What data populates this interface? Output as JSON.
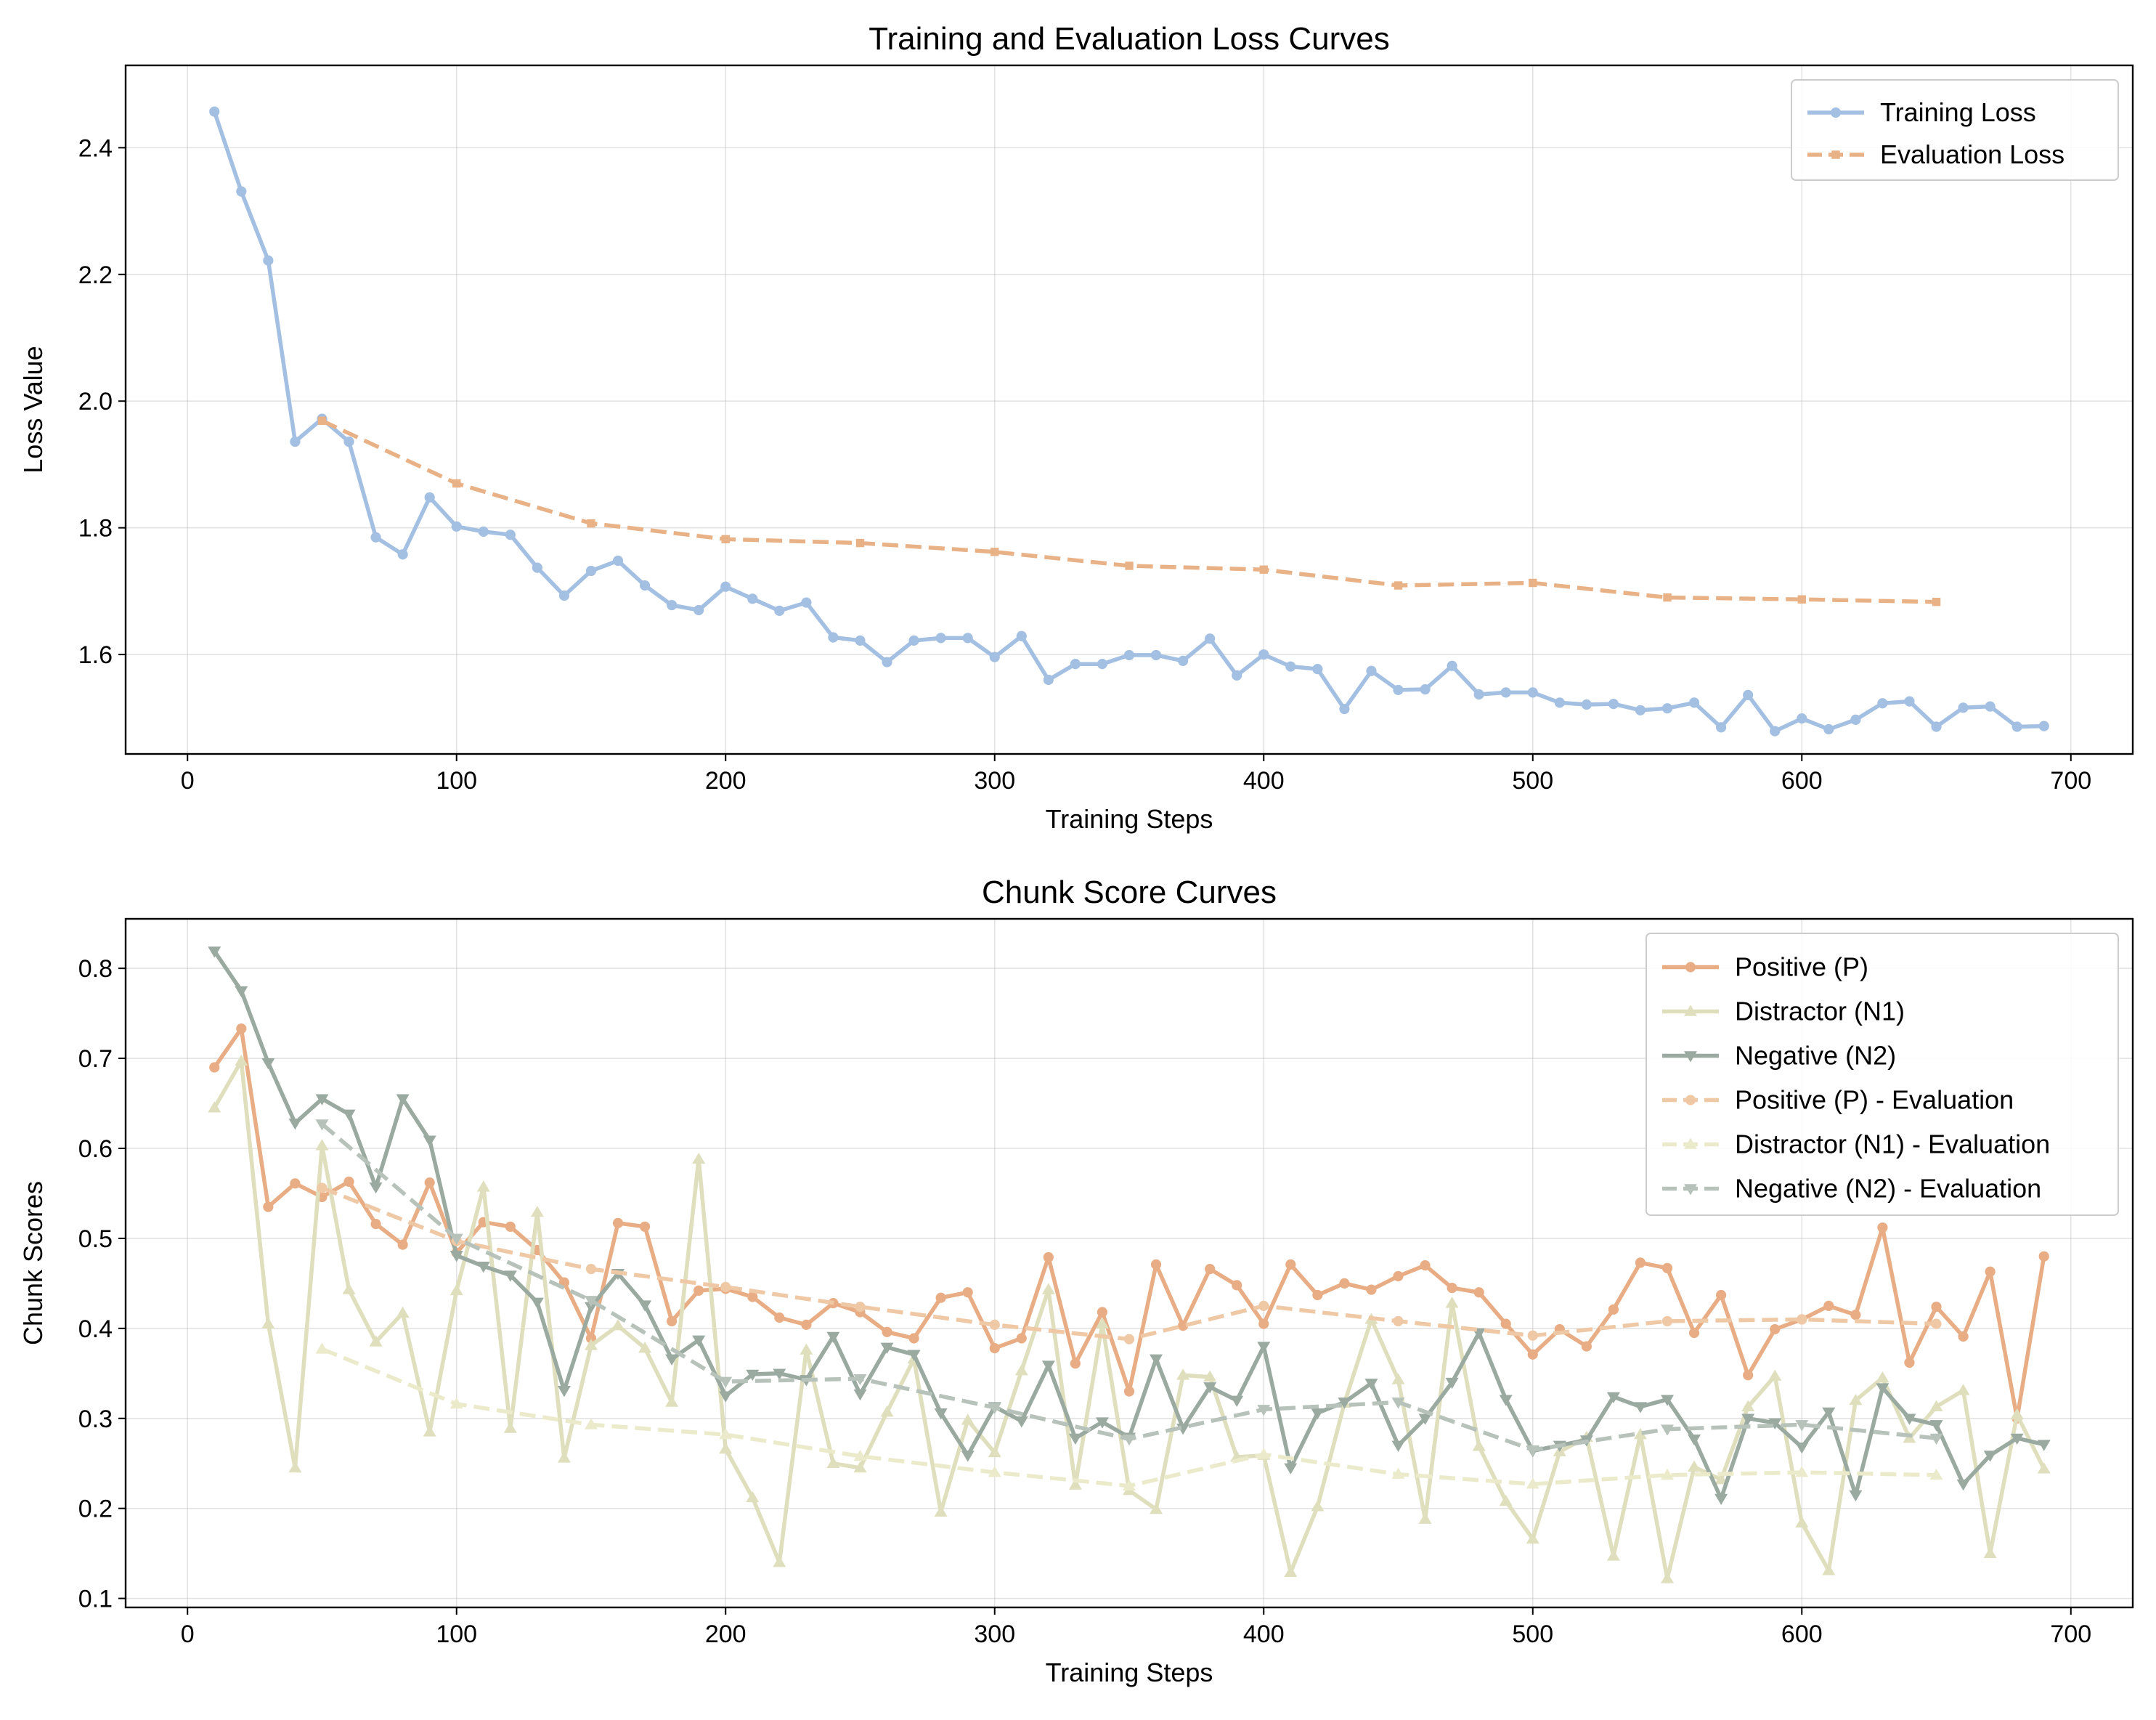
{
  "chart_data": [
    {
      "type": "line",
      "title": "Training and Evaluation Loss Curves",
      "xlabel": "Training Steps",
      "ylabel": "Loss Value",
      "xlim": [
        -23,
        723
      ],
      "ylim": [
        1.443,
        2.53
      ],
      "xticks": [
        0,
        100,
        200,
        300,
        400,
        500,
        600,
        700
      ],
      "yticks": [
        1.6,
        1.8,
        2.0,
        2.2,
        2.4
      ],
      "ytick_labels": [
        "1.6",
        "1.8",
        "2.0",
        "2.2",
        "2.4"
      ],
      "grid": true,
      "legend_position": "top-right",
      "series": [
        {
          "name": "Training Loss",
          "color": "#a3bfe2",
          "style": "solid",
          "marker": "circle",
          "x": [
            10,
            20,
            30,
            40,
            50,
            60,
            70,
            80,
            90,
            100,
            110,
            120,
            130,
            140,
            150,
            160,
            170,
            180,
            190,
            200,
            210,
            220,
            230,
            240,
            250,
            260,
            270,
            280,
            290,
            300,
            310,
            320,
            330,
            340,
            350,
            360,
            370,
            380,
            390,
            400,
            410,
            420,
            430,
            440,
            450,
            460,
            470,
            480,
            490,
            500,
            510,
            520,
            530,
            540,
            550,
            560,
            570,
            580,
            590,
            600,
            610,
            620,
            630,
            640,
            650,
            660,
            670,
            680,
            690
          ],
          "values": [
            2.457,
            2.331,
            2.222,
            1.936,
            1.972,
            1.936,
            1.785,
            1.758,
            1.848,
            1.802,
            1.794,
            1.789,
            1.737,
            1.693,
            1.732,
            1.748,
            1.709,
            1.678,
            1.67,
            1.707,
            1.688,
            1.669,
            1.682,
            1.627,
            1.622,
            1.588,
            1.622,
            1.626,
            1.626,
            1.596,
            1.629,
            1.56,
            1.585,
            1.585,
            1.599,
            1.599,
            1.59,
            1.625,
            1.567,
            1.6,
            1.581,
            1.577,
            1.514,
            1.574,
            1.544,
            1.545,
            1.582,
            1.537,
            1.54,
            1.54,
            1.524,
            1.521,
            1.522,
            1.512,
            1.515,
            1.524,
            1.485,
            1.536,
            1.479,
            1.499,
            1.482,
            1.497,
            1.523,
            1.526,
            1.486,
            1.516,
            1.518,
            1.486,
            1.487
          ]
        },
        {
          "name": "Evaluation Loss",
          "color": "#e8b186",
          "style": "dashed",
          "marker": "square",
          "x": [
            50,
            100,
            150,
            200,
            250,
            300,
            350,
            400,
            450,
            500,
            550,
            600,
            650
          ],
          "values": [
            1.969,
            1.87,
            1.807,
            1.782,
            1.776,
            1.762,
            1.74,
            1.734,
            1.709,
            1.713,
            1.69,
            1.687,
            1.683
          ]
        }
      ]
    },
    {
      "type": "line",
      "title": "Chunk Score Curves",
      "xlabel": "Training Steps",
      "ylabel": "Chunk Scores",
      "xlim": [
        -23,
        723
      ],
      "ylim": [
        0.09,
        0.855
      ],
      "xticks": [
        0,
        100,
        200,
        300,
        400,
        500,
        600,
        700
      ],
      "yticks": [
        0.1,
        0.2,
        0.3,
        0.4,
        0.5,
        0.6,
        0.7,
        0.8
      ],
      "ytick_labels": [
        "0.1",
        "0.2",
        "0.3",
        "0.4",
        "0.5",
        "0.6",
        "0.7",
        "0.8"
      ],
      "grid": true,
      "legend_position": "top-right",
      "series": [
        {
          "name": "Positive (P)",
          "color": "#e8ad84",
          "style": "solid",
          "marker": "circle",
          "x": [
            10,
            20,
            30,
            40,
            50,
            60,
            70,
            80,
            90,
            100,
            110,
            120,
            130,
            140,
            150,
            160,
            170,
            180,
            190,
            200,
            210,
            220,
            230,
            240,
            250,
            260,
            270,
            280,
            290,
            300,
            310,
            320,
            330,
            340,
            350,
            360,
            370,
            380,
            390,
            400,
            410,
            420,
            430,
            440,
            450,
            460,
            470,
            480,
            490,
            500,
            510,
            520,
            530,
            540,
            550,
            560,
            570,
            580,
            590,
            600,
            610,
            620,
            630,
            640,
            650,
            660,
            670,
            680,
            690
          ],
          "values": [
            0.69,
            0.733,
            0.535,
            0.561,
            0.546,
            0.563,
            0.516,
            0.493,
            0.562,
            0.484,
            0.518,
            0.513,
            0.487,
            0.451,
            0.389,
            0.517,
            0.513,
            0.408,
            0.442,
            0.444,
            0.435,
            0.412,
            0.404,
            0.428,
            0.418,
            0.396,
            0.389,
            0.434,
            0.44,
            0.378,
            0.389,
            0.479,
            0.361,
            0.418,
            0.33,
            0.471,
            0.403,
            0.466,
            0.448,
            0.405,
            0.471,
            0.437,
            0.45,
            0.443,
            0.458,
            0.47,
            0.445,
            0.44,
            0.405,
            0.371,
            0.399,
            0.38,
            0.421,
            0.473,
            0.467,
            0.395,
            0.437,
            0.348,
            0.399,
            0.41,
            0.425,
            0.415,
            0.512,
            0.362,
            0.424,
            0.391,
            0.463,
            0.3,
            0.48
          ]
        },
        {
          "name": "Distractor (N1)",
          "color": "#dfdfbd",
          "style": "solid",
          "marker": "triangle-up",
          "x": [
            10,
            20,
            30,
            40,
            50,
            60,
            70,
            80,
            90,
            100,
            110,
            120,
            130,
            140,
            150,
            160,
            170,
            180,
            190,
            200,
            210,
            220,
            230,
            240,
            250,
            260,
            270,
            280,
            290,
            300,
            310,
            320,
            330,
            340,
            350,
            360,
            370,
            380,
            390,
            400,
            410,
            420,
            430,
            440,
            450,
            460,
            470,
            480,
            490,
            500,
            510,
            520,
            530,
            540,
            550,
            560,
            570,
            580,
            590,
            600,
            610,
            620,
            630,
            640,
            650,
            660,
            670,
            680,
            690
          ],
          "values": [
            0.645,
            0.697,
            0.405,
            0.245,
            0.603,
            0.443,
            0.385,
            0.417,
            0.285,
            0.442,
            0.557,
            0.289,
            0.529,
            0.256,
            0.381,
            0.403,
            0.378,
            0.318,
            0.588,
            0.266,
            0.212,
            0.14,
            0.376,
            0.25,
            0.245,
            0.307,
            0.366,
            0.196,
            0.298,
            0.262,
            0.353,
            0.443,
            0.226,
            0.405,
            0.22,
            0.199,
            0.348,
            0.346,
            0.257,
            0.259,
            0.129,
            0.202,
            0.317,
            0.41,
            0.343,
            0.188,
            0.428,
            0.269,
            0.208,
            0.166,
            0.263,
            0.279,
            0.147,
            0.282,
            0.122,
            0.246,
            0.232,
            0.313,
            0.347,
            0.184,
            0.131,
            0.32,
            0.345,
            0.278,
            0.313,
            0.331,
            0.15,
            0.304,
            0.244
          ]
        },
        {
          "name": "Negative (N2)",
          "color": "#9aaaa0",
          "style": "solid",
          "marker": "triangle-down",
          "x": [
            10,
            20,
            30,
            40,
            50,
            60,
            70,
            80,
            90,
            100,
            110,
            120,
            130,
            140,
            150,
            160,
            170,
            180,
            190,
            200,
            210,
            220,
            230,
            240,
            250,
            260,
            270,
            280,
            290,
            300,
            310,
            320,
            330,
            340,
            350,
            360,
            370,
            380,
            390,
            400,
            410,
            420,
            430,
            440,
            450,
            460,
            470,
            480,
            490,
            500,
            510,
            520,
            530,
            540,
            550,
            560,
            570,
            580,
            590,
            600,
            610,
            620,
            630,
            640,
            650,
            660,
            670,
            680,
            690
          ],
          "values": [
            0.819,
            0.775,
            0.695,
            0.628,
            0.655,
            0.638,
            0.557,
            0.655,
            0.609,
            0.481,
            0.469,
            0.459,
            0.429,
            0.331,
            0.424,
            0.461,
            0.426,
            0.366,
            0.387,
            0.325,
            0.349,
            0.35,
            0.343,
            0.391,
            0.327,
            0.379,
            0.371,
            0.306,
            0.259,
            0.313,
            0.297,
            0.359,
            0.278,
            0.296,
            0.279,
            0.366,
            0.289,
            0.335,
            0.32,
            0.38,
            0.245,
            0.306,
            0.318,
            0.339,
            0.27,
            0.3,
            0.34,
            0.395,
            0.321,
            0.264,
            0.27,
            0.276,
            0.324,
            0.313,
            0.321,
            0.277,
            0.211,
            0.3,
            0.295,
            0.268,
            0.307,
            0.215,
            0.334,
            0.3,
            0.293,
            0.227,
            0.259,
            0.278,
            0.271
          ]
        },
        {
          "name": "Positive (P) - Evaluation",
          "color": "#efc8a6",
          "style": "dashed",
          "marker": "circle",
          "x": [
            50,
            100,
            150,
            200,
            250,
            300,
            350,
            400,
            450,
            500,
            550,
            600,
            650
          ],
          "values": [
            0.556,
            0.497,
            0.466,
            0.446,
            0.424,
            0.404,
            0.388,
            0.425,
            0.408,
            0.392,
            0.408,
            0.41,
            0.405
          ]
        },
        {
          "name": "Distractor (N1) - Evaluation",
          "color": "#ebebcc",
          "style": "dashed",
          "marker": "triangle-up",
          "x": [
            50,
            100,
            150,
            200,
            250,
            300,
            350,
            400,
            450,
            500,
            550,
            600,
            650
          ],
          "values": [
            0.377,
            0.316,
            0.293,
            0.282,
            0.258,
            0.24,
            0.225,
            0.26,
            0.238,
            0.227,
            0.237,
            0.24,
            0.237
          ]
        },
        {
          "name": "Negative (N2) - Evaluation",
          "color": "#b6c2ba",
          "style": "dashed",
          "marker": "triangle-down",
          "x": [
            50,
            100,
            150,
            200,
            250,
            300,
            350,
            400,
            450,
            500,
            550,
            600,
            650
          ],
          "values": [
            0.627,
            0.5,
            0.431,
            0.341,
            0.344,
            0.312,
            0.277,
            0.31,
            0.318,
            0.265,
            0.288,
            0.293,
            0.278
          ]
        }
      ]
    }
  ]
}
